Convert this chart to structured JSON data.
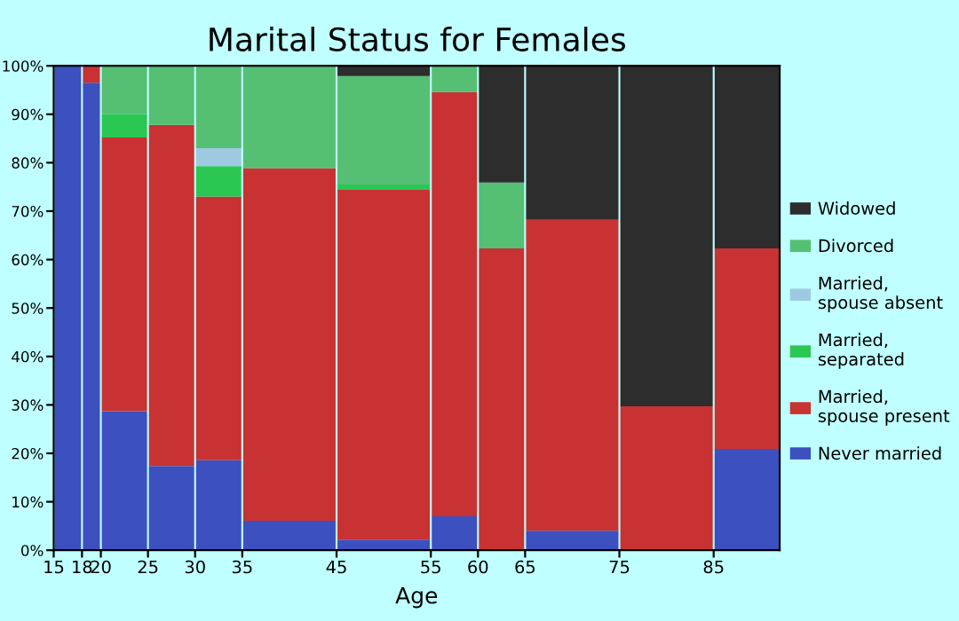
{
  "chart_data": {
    "type": "bar",
    "title": "Marital Status for Females",
    "xlabel": "Age",
    "stacked": true,
    "x": [
      16.5,
      19,
      22.5,
      27.5,
      32.5,
      40,
      50,
      57.5,
      62.5,
      70,
      80,
      88.5
    ],
    "xlim": [
      15,
      92
    ],
    "xticks": [
      15,
      18,
      20,
      25,
      30,
      35,
      45,
      55,
      60,
      65,
      75,
      85
    ],
    "ylim": [
      0,
      100
    ],
    "yticks": [
      {
        "value": 0,
        "label": "0%"
      },
      {
        "value": 10,
        "label": "10%"
      },
      {
        "value": 20,
        "label": "20%"
      },
      {
        "value": 30,
        "label": "30%"
      },
      {
        "value": 40,
        "label": "40%"
      },
      {
        "value": 50,
        "label": "50%"
      },
      {
        "value": 60,
        "label": "60%"
      },
      {
        "value": 70,
        "label": "70%"
      },
      {
        "value": 80,
        "label": "80%"
      },
      {
        "value": 90,
        "label": "90%"
      },
      {
        "value": 100,
        "label": "100%"
      }
    ],
    "grid": false,
    "legend": "right",
    "series": [
      {
        "name": "Never married",
        "color": "#3c50c0",
        "values": [
          100,
          96.5,
          28.7,
          17.4,
          18.6,
          6.1,
          2.2,
          7.0,
          null,
          4.0,
          null,
          20.9
        ]
      },
      {
        "name": "Married, spouse present",
        "color": "#c83232",
        "values": [
          null,
          3.5,
          56.5,
          70.4,
          54.4,
          72.8,
          72.2,
          87.6,
          62.3,
          64.2,
          29.7,
          41.4
        ]
      },
      {
        "name": "Married, separated",
        "color": "#2ac853",
        "values": [
          null,
          null,
          4.8,
          null,
          6.3,
          null,
          1.1,
          null,
          null,
          null,
          null,
          null
        ]
      },
      {
        "name": "Married, spouse absent",
        "color": "#9ecae1",
        "values": [
          null,
          null,
          null,
          null,
          3.7,
          null,
          null,
          null,
          null,
          null,
          null,
          null
        ]
      },
      {
        "name": "Divorced",
        "color": "#55bf73",
        "values": [
          null,
          null,
          10.0,
          12.2,
          17.0,
          21.1,
          22.4,
          5.4,
          13.6,
          null,
          null,
          null
        ]
      },
      {
        "name": "Widowed",
        "color": "#2d2d2d",
        "values": [
          null,
          null,
          null,
          null,
          null,
          null,
          2.1,
          null,
          24.1,
          31.8,
          70.3,
          37.7
        ]
      }
    ]
  }
}
